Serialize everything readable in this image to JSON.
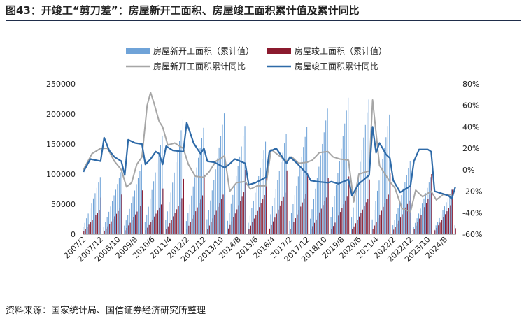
{
  "header": {
    "title": "图43：开竣工“剪刀差”：房屋新开工面积、房屋竣工面积累计值及累计同比"
  },
  "footer": {
    "source": "资料来源：国家统计局、国信证券经济研究所整理"
  },
  "colors": {
    "new_bar": "#6fa3d8",
    "comp_bar": "#8b1a2e",
    "new_yoy": "#a6a6a6",
    "comp_yoy": "#2e6aa8",
    "rule": "#1f2d4a"
  },
  "chart_data": {
    "type": "bar+line",
    "legend": [
      {
        "name": "房屋新开工面积（累计值）",
        "kind": "bar",
        "color": "#6fa3d8"
      },
      {
        "name": "房屋竣工面积（累计值）",
        "kind": "bar",
        "color": "#8b1a2e"
      },
      {
        "name": "房屋新开工面积累计同比",
        "kind": "line",
        "color": "#a6a6a6"
      },
      {
        "name": "房屋竣工面积累计同比",
        "kind": "line",
        "color": "#2e6aa8"
      }
    ],
    "legend_position": "top",
    "x_tick_labels": [
      "2007/2",
      "2007/12",
      "2008/10",
      "2009/8",
      "2010/6",
      "2011/4",
      "2012/2",
      "2012/12",
      "2013/10",
      "2014/8",
      "2015/6",
      "2016/4",
      "2017/2",
      "2017/12",
      "2018/10",
      "2019/8",
      "2020/6",
      "2021/4",
      "2022/2",
      "2022/12",
      "2023/10",
      "2024/8"
    ],
    "y_left": {
      "ylim": [
        0,
        250000
      ],
      "ticks": [
        0,
        50000,
        100000,
        150000,
        200000,
        250000
      ]
    },
    "y_right": {
      "ylim": [
        -60,
        80
      ],
      "ticks": [
        "-60%",
        "-40%",
        "-20%",
        "0%",
        "20%",
        "40%",
        "60%",
        "80%"
      ]
    },
    "grid": false,
    "years": [
      2007,
      2008,
      2009,
      2010,
      2011,
      2012,
      2013,
      2014,
      2015,
      2016,
      2017,
      2018,
      2019,
      2020,
      2021,
      2022,
      2023,
      2024
    ],
    "annual_peak": {
      "new_start": [
        95000,
        103000,
        116000,
        164000,
        191000,
        177000,
        201000,
        180000,
        154000,
        167000,
        179000,
        209000,
        227000,
        224000,
        199000,
        121000,
        95000,
        74000
      ],
      "completion": [
        61000,
        66000,
        73000,
        76000,
        92000,
        99000,
        101000,
        107000,
        100000,
        106000,
        102000,
        94000,
        96000,
        91000,
        101000,
        86000,
        100000,
        74000
      ]
    },
    "new_start_yoy_pct": [
      {
        "x": "2007/2",
        "y": 0
      },
      {
        "x": "2007/7",
        "y": 15
      },
      {
        "x": "2007/12",
        "y": 20
      },
      {
        "x": "2008/4",
        "y": 20
      },
      {
        "x": "2008/8",
        "y": 8
      },
      {
        "x": "2008/12",
        "y": 0
      },
      {
        "x": "2009/3",
        "y": -16
      },
      {
        "x": "2009/6",
        "y": -12
      },
      {
        "x": "2009/9",
        "y": 5
      },
      {
        "x": "2009/12",
        "y": 12
      },
      {
        "x": "2010/3",
        "y": 60
      },
      {
        "x": "2010/5",
        "y": 72
      },
      {
        "x": "2010/7",
        "y": 62
      },
      {
        "x": "2010/10",
        "y": 45
      },
      {
        "x": "2010/12",
        "y": 40
      },
      {
        "x": "2011/3",
        "y": 23
      },
      {
        "x": "2011/7",
        "y": 25
      },
      {
        "x": "2011/12",
        "y": 20
      },
      {
        "x": "2012/3",
        "y": 5
      },
      {
        "x": "2012/7",
        "y": -6
      },
      {
        "x": "2012/12",
        "y": -7
      },
      {
        "x": "2013/3",
        "y": -2
      },
      {
        "x": "2013/7",
        "y": 8
      },
      {
        "x": "2013/12",
        "y": 13
      },
      {
        "x": "2014/3",
        "y": -20
      },
      {
        "x": "2014/7",
        "y": -12
      },
      {
        "x": "2014/12",
        "y": -11
      },
      {
        "x": "2015/3",
        "y": -18
      },
      {
        "x": "2015/7",
        "y": -15
      },
      {
        "x": "2015/12",
        "y": -15
      },
      {
        "x": "2016/3",
        "y": 19
      },
      {
        "x": "2016/7",
        "y": 14
      },
      {
        "x": "2016/12",
        "y": 8
      },
      {
        "x": "2017/3",
        "y": 12
      },
      {
        "x": "2017/7",
        "y": 6
      },
      {
        "x": "2017/12",
        "y": 7
      },
      {
        "x": "2018/3",
        "y": 9
      },
      {
        "x": "2018/7",
        "y": 16
      },
      {
        "x": "2018/12",
        "y": 17
      },
      {
        "x": "2019/3",
        "y": 12
      },
      {
        "x": "2019/7",
        "y": 10
      },
      {
        "x": "2019/12",
        "y": 9
      },
      {
        "x": "2020/3",
        "y": -30
      },
      {
        "x": "2020/6",
        "y": -4
      },
      {
        "x": "2020/12",
        "y": -1
      },
      {
        "x": "2021/2",
        "y": 65
      },
      {
        "x": "2021/6",
        "y": 4
      },
      {
        "x": "2021/12",
        "y": -11
      },
      {
        "x": "2022/3",
        "y": -17
      },
      {
        "x": "2022/7",
        "y": -36
      },
      {
        "x": "2022/12",
        "y": -39
      },
      {
        "x": "2023/3",
        "y": -19
      },
      {
        "x": "2023/7",
        "y": -25
      },
      {
        "x": "2023/12",
        "y": -20
      },
      {
        "x": "2024/3",
        "y": -28
      },
      {
        "x": "2024/7",
        "y": -23
      },
      {
        "x": "2024/12",
        "y": -23
      }
    ],
    "completion_yoy_pct": [
      {
        "x": "2007/2",
        "y": -2
      },
      {
        "x": "2007/6",
        "y": 10
      },
      {
        "x": "2007/12",
        "y": 8
      },
      {
        "x": "2008/2",
        "y": 30
      },
      {
        "x": "2008/5",
        "y": 18
      },
      {
        "x": "2008/8",
        "y": 12
      },
      {
        "x": "2008/12",
        "y": 8
      },
      {
        "x": "2009/2",
        "y": -5
      },
      {
        "x": "2009/4",
        "y": 28
      },
      {
        "x": "2009/8",
        "y": 25
      },
      {
        "x": "2009/12",
        "y": 24
      },
      {
        "x": "2010/2",
        "y": 5
      },
      {
        "x": "2010/5",
        "y": 10
      },
      {
        "x": "2010/8",
        "y": 17
      },
      {
        "x": "2010/10",
        "y": 15
      },
      {
        "x": "2010/12",
        "y": 5
      },
      {
        "x": "2011/2",
        "y": 22
      },
      {
        "x": "2011/6",
        "y": 18
      },
      {
        "x": "2011/12",
        "y": 17
      },
      {
        "x": "2012/2",
        "y": 44
      },
      {
        "x": "2012/6",
        "y": 25
      },
      {
        "x": "2012/10",
        "y": 15
      },
      {
        "x": "2012/12",
        "y": 20
      },
      {
        "x": "2013/2",
        "y": 8
      },
      {
        "x": "2013/6",
        "y": 7
      },
      {
        "x": "2013/12",
        "y": 2
      },
      {
        "x": "2014/2",
        "y": 4
      },
      {
        "x": "2014/6",
        "y": 10
      },
      {
        "x": "2014/12",
        "y": 6
      },
      {
        "x": "2015/2",
        "y": -14
      },
      {
        "x": "2015/6",
        "y": -12
      },
      {
        "x": "2015/12",
        "y": -7
      },
      {
        "x": "2016/2",
        "y": 17
      },
      {
        "x": "2016/6",
        "y": 20
      },
      {
        "x": "2016/12",
        "y": 6
      },
      {
        "x": "2017/2",
        "y": 12
      },
      {
        "x": "2017/6",
        "y": 6
      },
      {
        "x": "2017/12",
        "y": -4
      },
      {
        "x": "2018/2",
        "y": -10
      },
      {
        "x": "2018/6",
        "y": -11
      },
      {
        "x": "2018/12",
        "y": -12
      },
      {
        "x": "2019/2",
        "y": -11
      },
      {
        "x": "2019/6",
        "y": -13
      },
      {
        "x": "2019/12",
        "y": -9
      },
      {
        "x": "2020/2",
        "y": -24
      },
      {
        "x": "2020/6",
        "y": -13
      },
      {
        "x": "2020/12",
        "y": -5
      },
      {
        "x": "2021/2",
        "y": 40
      },
      {
        "x": "2021/4",
        "y": 16
      },
      {
        "x": "2021/6",
        "y": 25
      },
      {
        "x": "2021/10",
        "y": 14
      },
      {
        "x": "2021/12",
        "y": 11
      },
      {
        "x": "2022/2",
        "y": -10
      },
      {
        "x": "2022/6",
        "y": -21
      },
      {
        "x": "2022/12",
        "y": -15
      },
      {
        "x": "2023/2",
        "y": 8
      },
      {
        "x": "2023/5",
        "y": 19
      },
      {
        "x": "2023/10",
        "y": 19
      },
      {
        "x": "2023/12",
        "y": 17
      },
      {
        "x": "2024/2",
        "y": -20
      },
      {
        "x": "2024/8",
        "y": -23
      },
      {
        "x": "2024/10",
        "y": -24
      },
      {
        "x": "2024/12",
        "y": -27
      },
      {
        "x": "2025/2",
        "y": -16
      }
    ]
  }
}
